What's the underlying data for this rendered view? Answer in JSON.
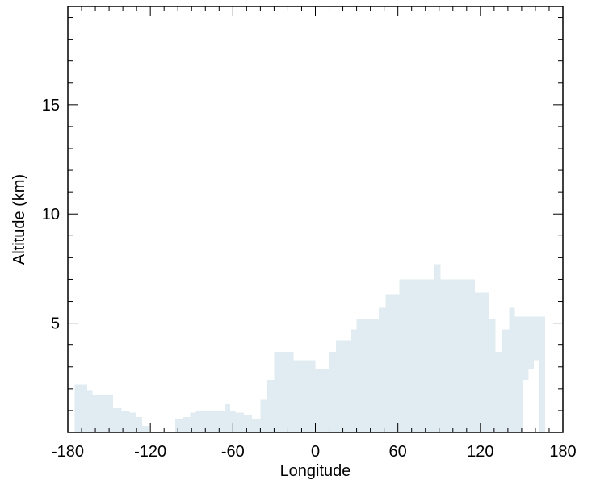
{
  "chart_data": {
    "type": "area",
    "title": "",
    "xlabel": "Longitude",
    "ylabel": "Altitude (km)",
    "xlim": [
      -180,
      180
    ],
    "ylim": [
      0,
      19.5
    ],
    "xticks": [
      -180,
      -120,
      -60,
      0,
      60,
      120,
      180
    ],
    "yticks": [
      5,
      10,
      15
    ],
    "x_minor_step": 10,
    "y_minor_step": 1,
    "grid": false,
    "fill_color": "#e1ebf2",
    "steps": [
      {
        "x": -175,
        "y": 2.2
      },
      {
        "x": -166,
        "y": 1.9
      },
      {
        "x": -162,
        "y": 1.7
      },
      {
        "x": -147,
        "y": 1.1
      },
      {
        "x": -141,
        "y": 1.0
      },
      {
        "x": -135,
        "y": 0.9
      },
      {
        "x": -130,
        "y": 0.7
      },
      {
        "x": -126,
        "y": 0.3
      },
      {
        "x": -121,
        "y": 0.0
      },
      {
        "x": -102,
        "y": 0.6
      },
      {
        "x": -96,
        "y": 0.7
      },
      {
        "x": -91,
        "y": 0.9
      },
      {
        "x": -87,
        "y": 1.0
      },
      {
        "x": -66,
        "y": 1.3
      },
      {
        "x": -62,
        "y": 1.0
      },
      {
        "x": -58,
        "y": 0.9
      },
      {
        "x": -52,
        "y": 0.8
      },
      {
        "x": -46,
        "y": 0.6
      },
      {
        "x": -40,
        "y": 1.5
      },
      {
        "x": -35,
        "y": 2.4
      },
      {
        "x": -30,
        "y": 3.7
      },
      {
        "x": -16,
        "y": 3.3
      },
      {
        "x": 0,
        "y": 2.9
      },
      {
        "x": 10,
        "y": 3.7
      },
      {
        "x": 15,
        "y": 4.2
      },
      {
        "x": 26,
        "y": 4.7
      },
      {
        "x": 30,
        "y": 5.2
      },
      {
        "x": 46,
        "y": 5.7
      },
      {
        "x": 51,
        "y": 6.3
      },
      {
        "x": 61,
        "y": 7.0
      },
      {
        "x": 86,
        "y": 7.7
      },
      {
        "x": 91,
        "y": 7.0
      },
      {
        "x": 116,
        "y": 6.4
      },
      {
        "x": 126,
        "y": 5.2
      },
      {
        "x": 131,
        "y": 3.7
      },
      {
        "x": 136,
        "y": 4.7
      },
      {
        "x": 141,
        "y": 5.7
      },
      {
        "x": 145,
        "y": 5.3
      },
      {
        "x": 151,
        "y": 5.3
      },
      {
        "x": 167,
        "y": 0.0
      }
    ],
    "notch": [
      {
        "x": 151,
        "y": 0.0
      },
      {
        "x": 151,
        "y": 2.4
      },
      {
        "x": 155,
        "y": 2.4
      },
      {
        "x": 155,
        "y": 2.9
      },
      {
        "x": 159,
        "y": 2.9
      },
      {
        "x": 159,
        "y": 3.3
      },
      {
        "x": 163,
        "y": 3.3
      }
    ]
  }
}
